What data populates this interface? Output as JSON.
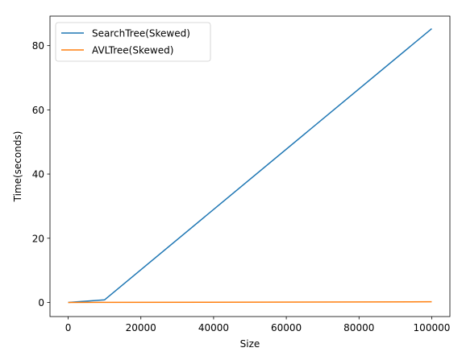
{
  "chart_data": {
    "type": "line",
    "xlabel": "Size",
    "ylabel": "Time(seconds)",
    "xlim": [
      -5000,
      105000
    ],
    "ylim": [
      -4.4,
      89.2
    ],
    "xticks": [
      0,
      20000,
      40000,
      60000,
      80000,
      100000
    ],
    "xtick_labels": [
      "0",
      "20000",
      "40000",
      "60000",
      "80000",
      "100000"
    ],
    "yticks": [
      0,
      20,
      40,
      60,
      80
    ],
    "ytick_labels": [
      "0",
      "20",
      "40",
      "60",
      "80"
    ],
    "grid": false,
    "legend_position": "top-left",
    "series": [
      {
        "name": "SearchTree(Skewed)",
        "color": "#1f77b4",
        "x": [
          0,
          10000,
          100000
        ],
        "y": [
          0.0,
          0.8,
          85.3
        ]
      },
      {
        "name": "AVLTree(Skewed)",
        "color": "#ff7f0e",
        "x": [
          0,
          10000,
          100000
        ],
        "y": [
          0.0,
          0.01,
          0.2
        ]
      }
    ]
  }
}
